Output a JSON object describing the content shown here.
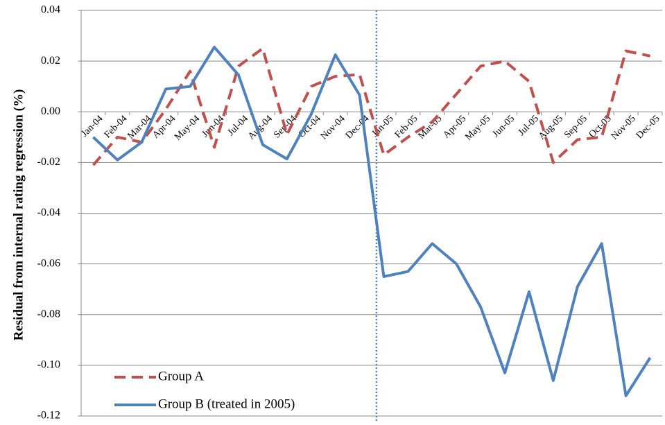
{
  "chart_data": {
    "type": "line",
    "y_label": "Residual from internal rating regression (%)",
    "categories": [
      "Jan-04",
      "Feb-04",
      "Mar-04",
      "Apr-04",
      "May-04",
      "Jun-04",
      "Jul-04",
      "Aug-04",
      "Sep-04",
      "Oct-04",
      "Nov-04",
      "Dec-04",
      "Jan-05",
      "Feb-05",
      "Mar-05",
      "Apr-05",
      "May-05",
      "Jun-05",
      "Jul-05",
      "Aug-05",
      "Sep-05",
      "Oct-05",
      "Nov-05",
      "Dec-05"
    ],
    "series": [
      {
        "name": "Group A",
        "color": "#c0504d",
        "dashed": true,
        "values": [
          -0.021,
          -0.01,
          -0.012,
          0.001,
          0.016,
          -0.014,
          0.018,
          0.025,
          -0.009,
          0.01,
          0.014,
          0.0147,
          -0.017,
          -0.01,
          -0.004,
          0.007,
          0.018,
          0.02,
          0.012,
          -0.02,
          -0.011,
          -0.01,
          0.024,
          0.022
        ]
      },
      {
        "name": "Group B (treated in 2005)",
        "color": "#4f81bd",
        "dashed": false,
        "values": [
          -0.01,
          -0.019,
          -0.012,
          0.009,
          0.01,
          0.0255,
          0.0145,
          -0.013,
          -0.0186,
          -0.001,
          0.0225,
          0.0066,
          -0.065,
          -0.063,
          -0.052,
          -0.06,
          -0.077,
          -0.103,
          -0.071,
          -0.106,
          -0.069,
          -0.052,
          -0.112,
          -0.097
        ]
      }
    ],
    "ylim": [
      -0.12,
      0.04
    ],
    "yticks": [
      -0.12,
      {
        "value": -0.1,
        "label": "-0.10"
      },
      -0.08,
      -0.06,
      -0.04,
      -0.02,
      {
        "value": 0,
        "label": "0.00"
      },
      0.02,
      0.04
    ],
    "grid": true,
    "legend": "lower left"
  }
}
